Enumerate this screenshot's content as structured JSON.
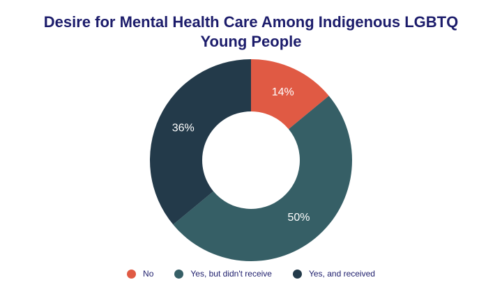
{
  "chart_data": {
    "type": "donut",
    "title": "Desire for Mental Health Care Among Indigenous LGBTQ Young People",
    "categories": [
      "No",
      "Yes, but didn't receive",
      "Yes, and received"
    ],
    "values": [
      14,
      50,
      36
    ],
    "value_labels": [
      "14%",
      "50%",
      "36%"
    ],
    "colors": [
      "#e05a44",
      "#365f66",
      "#233a4a"
    ],
    "legend": "bottom"
  }
}
